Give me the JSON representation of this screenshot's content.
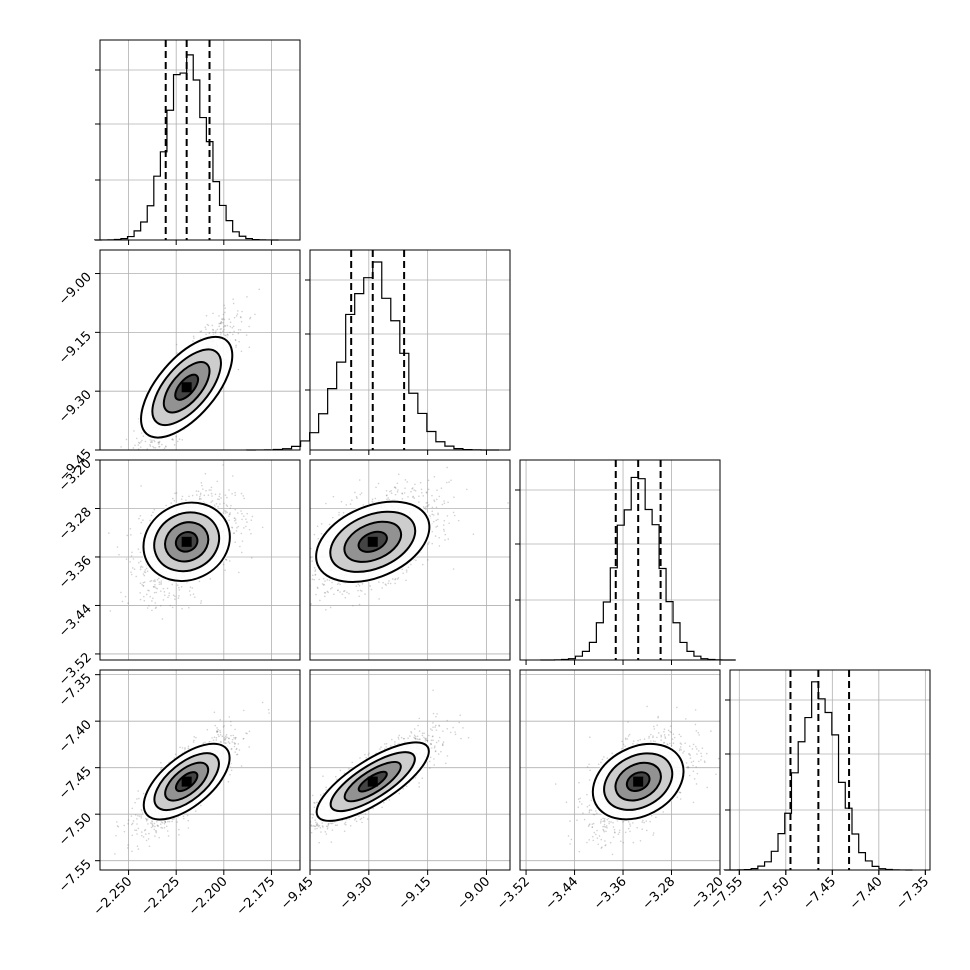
{
  "chart_data": {
    "type": "corner",
    "grid": true,
    "parameters": [
      {
        "index": 0,
        "mean": -2.2195,
        "std": 0.0105,
        "range": [
          -2.265,
          -2.16
        ],
        "ticks": [
          -2.25,
          -2.225,
          -2.2,
          -2.175
        ],
        "tick_labels": [
          "−2.250",
          "−2.225",
          "−2.200",
          "−2.175"
        ],
        "quantiles": [
          -2.2305,
          -2.2195,
          -2.2075
        ]
      },
      {
        "index": 1,
        "mean": -9.29,
        "std": 0.07,
        "range": [
          -9.45,
          -8.94
        ],
        "ticks": [
          -9.45,
          -9.3,
          -9.15,
          -9.0
        ],
        "tick_labels": [
          "−9.45",
          "−9.30",
          "−9.15",
          "−9.00"
        ],
        "quantiles": [
          -9.345,
          -9.29,
          -9.21
        ]
      },
      {
        "index": 2,
        "mean": -3.335,
        "std": 0.035,
        "range": [
          -3.53,
          -3.2
        ],
        "ticks": [
          -3.52,
          -3.44,
          -3.36,
          -3.28,
          -3.2
        ],
        "tick_labels": [
          "−3.52",
          "−3.44",
          "−3.36",
          "−3.28",
          "−3.20"
        ],
        "quantiles": [
          -3.372,
          -3.335,
          -3.298
        ]
      },
      {
        "index": 3,
        "mean": -7.465,
        "std": 0.022,
        "range": [
          -7.56,
          -7.345
        ],
        "ticks": [
          -7.55,
          -7.5,
          -7.45,
          -7.4,
          -7.35
        ],
        "tick_labels": [
          "−7.55",
          "−7.50",
          "−7.45",
          "−7.40",
          "−7.35"
        ],
        "quantiles": [
          -7.495,
          -7.465,
          -7.432
        ]
      }
    ],
    "correlations": {
      "1-0": 0.85,
      "2-0": 0.45,
      "2-1": 0.55,
      "3-0": 0.8,
      "3-1": 0.85,
      "3-2": 0.55
    },
    "histogram_bins": 20,
    "contour_levels": [
      0.5,
      1.0,
      1.5,
      2.0
    ],
    "colors": {
      "line": "#000000",
      "scatter": "#7a7a7a",
      "density": "#000000",
      "grid": "#b0b0b0"
    }
  }
}
